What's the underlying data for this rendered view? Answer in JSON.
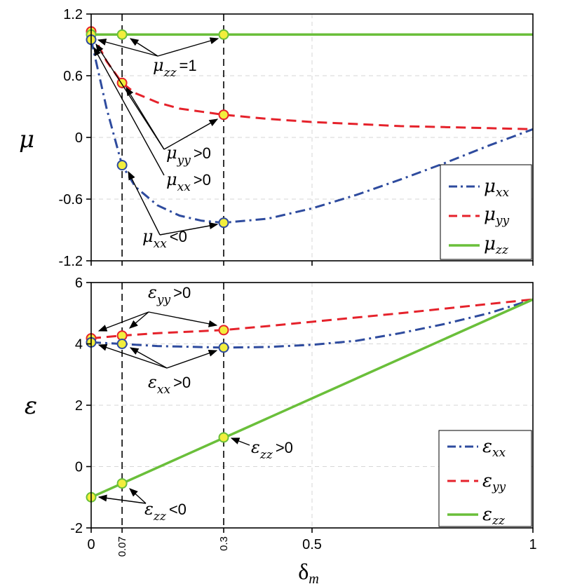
{
  "chart_data": [
    {
      "type": "line",
      "panel": "top",
      "ylabel": "μ",
      "ylim": [
        -1.2,
        1.2
      ],
      "yticks": [
        -1.2,
        -0.6,
        0,
        0.6,
        1.2
      ],
      "ytick_labels": [
        "-1.2",
        "-0.6",
        "0",
        "0.6",
        "1.2"
      ],
      "xlim": [
        0,
        1
      ],
      "grid": true,
      "legend_position": "bottom-right",
      "series": [
        {
          "name": "μ_xx",
          "symbol": "μ",
          "sub": "xx",
          "color": "#2e4b9e",
          "dash": "dashdot",
          "x": [
            0,
            0.035,
            0.07,
            0.1,
            0.15,
            0.2,
            0.25,
            0.3,
            0.4,
            0.5,
            0.6,
            0.7,
            0.8,
            0.9,
            1.0
          ],
          "y": [
            0.95,
            0.28,
            -0.27,
            -0.48,
            -0.66,
            -0.76,
            -0.81,
            -0.83,
            -0.79,
            -0.69,
            -0.56,
            -0.41,
            -0.25,
            -0.08,
            0.08
          ]
        },
        {
          "name": "μ_yy",
          "symbol": "μ",
          "sub": "yy",
          "color": "#e5222b",
          "dash": "dashed",
          "x": [
            0,
            0.035,
            0.07,
            0.1,
            0.15,
            0.2,
            0.25,
            0.3,
            0.4,
            0.5,
            0.6,
            0.7,
            0.8,
            0.9,
            1.0
          ],
          "y": [
            1.03,
            0.74,
            0.53,
            0.43,
            0.34,
            0.28,
            0.25,
            0.22,
            0.18,
            0.15,
            0.13,
            0.11,
            0.1,
            0.09,
            0.08
          ]
        },
        {
          "name": "μ_zz",
          "symbol": "μ",
          "sub": "zz",
          "color": "#6abf3a",
          "dash": "solid",
          "x": [
            0,
            1.0
          ],
          "y": [
            1.0,
            1.0
          ]
        }
      ],
      "markers": [
        {
          "x": 0,
          "y": 1.03,
          "series": "μ_yy"
        },
        {
          "x": 0,
          "y": 1.0,
          "series": "μ_zz"
        },
        {
          "x": 0,
          "y": 0.95,
          "series": "μ_xx"
        },
        {
          "x": 0.07,
          "y": 1.0,
          "series": "μ_zz"
        },
        {
          "x": 0.07,
          "y": 0.53,
          "series": "μ_yy"
        },
        {
          "x": 0.07,
          "y": -0.27,
          "series": "μ_xx"
        },
        {
          "x": 0.3,
          "y": 1.0,
          "series": "μ_zz"
        },
        {
          "x": 0.3,
          "y": 0.22,
          "series": "μ_yy"
        },
        {
          "x": 0.3,
          "y": -0.83,
          "series": "μ_xx"
        }
      ],
      "annotations": [
        {
          "symbol": "μ",
          "sub": "zz",
          "op": "=1"
        },
        {
          "symbol": "μ",
          "sub": "yy",
          "op": ">0"
        },
        {
          "symbol": "μ",
          "sub": "xx",
          "op": ">0"
        },
        {
          "symbol": "μ",
          "sub": "xx",
          "op": "<0"
        }
      ]
    },
    {
      "type": "line",
      "panel": "bottom",
      "ylabel": "ε",
      "xlabel": "δ",
      "xlabel_sub": "m",
      "ylim": [
        -2,
        6
      ],
      "yticks": [
        -2,
        0,
        2,
        4,
        6
      ],
      "ytick_labels": [
        "-2",
        "0",
        "2",
        "4",
        "6"
      ],
      "xlim": [
        0,
        1
      ],
      "xticks": [
        0,
        0.07,
        0.3,
        0.5,
        1
      ],
      "xtick_labels": [
        "0",
        "0.07",
        "0.3",
        "0.5",
        "1"
      ],
      "xtick_rotated": [
        false,
        true,
        true,
        false,
        false
      ],
      "grid": true,
      "legend_position": "bottom-right",
      "series": [
        {
          "name": "ε_xx",
          "symbol": "ε",
          "sub": "xx",
          "color": "#2e4b9e",
          "dash": "dashdot",
          "x": [
            0,
            0.07,
            0.15,
            0.3,
            0.4,
            0.5,
            0.6,
            0.7,
            0.8,
            0.9,
            1.0
          ],
          "y": [
            4.05,
            4.0,
            3.93,
            3.88,
            3.9,
            3.97,
            4.1,
            4.35,
            4.65,
            5.0,
            5.45
          ]
        },
        {
          "name": "ε_yy",
          "symbol": "ε",
          "sub": "yy",
          "color": "#e5222b",
          "dash": "dashed",
          "x": [
            0,
            0.07,
            0.15,
            0.3,
            0.4,
            0.5,
            0.6,
            0.7,
            0.8,
            0.9,
            1.0
          ],
          "y": [
            4.18,
            4.27,
            4.35,
            4.45,
            4.58,
            4.72,
            4.86,
            5.0,
            5.15,
            5.3,
            5.45
          ]
        },
        {
          "name": "ε_zz",
          "symbol": "ε",
          "sub": "zz",
          "color": "#6abf3a",
          "dash": "solid",
          "x": [
            0,
            1.0
          ],
          "y": [
            -1.0,
            5.45
          ]
        }
      ],
      "markers": [
        {
          "x": 0,
          "y": 4.18,
          "series": "ε_yy"
        },
        {
          "x": 0,
          "y": 4.05,
          "series": "ε_xx"
        },
        {
          "x": 0,
          "y": -1.0,
          "series": "ε_zz"
        },
        {
          "x": 0.07,
          "y": 4.27,
          "series": "ε_yy"
        },
        {
          "x": 0.07,
          "y": 4.0,
          "series": "ε_xx"
        },
        {
          "x": 0.07,
          "y": -0.55,
          "series": "ε_zz"
        },
        {
          "x": 0.3,
          "y": 4.45,
          "series": "ε_yy"
        },
        {
          "x": 0.3,
          "y": 3.88,
          "series": "ε_xx"
        },
        {
          "x": 0.3,
          "y": 0.95,
          "series": "ε_zz"
        }
      ],
      "annotations": [
        {
          "symbol": "ε",
          "sub": "yy",
          "op": ">0"
        },
        {
          "symbol": "ε",
          "sub": "xx",
          "op": ">0"
        },
        {
          "symbol": "ε",
          "sub": "zz",
          "op": ">0"
        },
        {
          "symbol": "ε",
          "sub": "zz",
          "op": "<0"
        }
      ]
    }
  ],
  "colors": {
    "xx": "#2e4b9e",
    "yy": "#e5222b",
    "zz": "#6abf3a",
    "marker_fill": "#f2ee3c"
  }
}
